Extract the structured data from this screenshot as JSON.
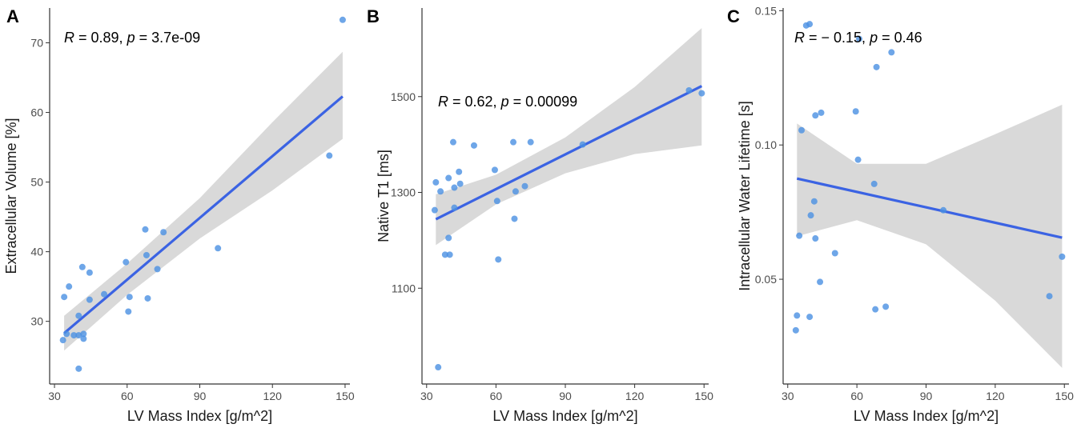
{
  "colors": {
    "point": "#4a90e2",
    "line": "#3b63e3",
    "band": "#d9d9d9",
    "axis": "#333333"
  },
  "chart_data": [
    {
      "type": "scatter",
      "panel_label": "A",
      "annotation": {
        "r_text": "R",
        "r_value": " = 0.89, ",
        "p_text": "p",
        "p_value": " = 3.7e-09"
      },
      "xlabel": "LV Mass Index [g/m^2]",
      "ylabel": "Extracellular Volume [%]",
      "xlim": [
        28,
        152
      ],
      "ylim": [
        21,
        75
      ],
      "xticks": [
        30,
        60,
        90,
        120,
        150
      ],
      "yticks": [
        30,
        40,
        50,
        60,
        70
      ],
      "points": [
        [
          33.5,
          27.3
        ],
        [
          34,
          33.5
        ],
        [
          35,
          28.2
        ],
        [
          36,
          35
        ],
        [
          38,
          28
        ],
        [
          40,
          28
        ],
        [
          40,
          30.8
        ],
        [
          40,
          23.2
        ],
        [
          41.5,
          37.8
        ],
        [
          42,
          28.2
        ],
        [
          42,
          27.5
        ],
        [
          44.5,
          37
        ],
        [
          44.5,
          33.1
        ],
        [
          50.5,
          33.9
        ],
        [
          59.5,
          38.5
        ],
        [
          60.5,
          31.4
        ],
        [
          61,
          33.5
        ],
        [
          67.5,
          43.2
        ],
        [
          68,
          39.5
        ],
        [
          68.5,
          33.3
        ],
        [
          72.5,
          37.5
        ],
        [
          75,
          42.8
        ],
        [
          97.5,
          40.5
        ],
        [
          143.5,
          53.8
        ],
        [
          149,
          73.3
        ]
      ],
      "fit": {
        "x": [
          34,
          149
        ],
        "y": [
          28.3,
          62.3
        ]
      },
      "band": {
        "x": [
          34,
          60,
          90,
          120,
          149
        ],
        "lower": [
          25.8,
          33.8,
          41.9,
          48.8,
          56.2
        ],
        "upper": [
          30.8,
          38.3,
          47.7,
          58.6,
          68.7
        ]
      }
    },
    {
      "type": "scatter",
      "panel_label": "B",
      "annotation": {
        "r_text": "R",
        "r_value": " = 0.62, ",
        "p_text": "p",
        "p_value": " = 0.00099"
      },
      "xlabel": "LV Mass Index [g/m^2]",
      "ylabel": "Native T1 [ms]",
      "xlim": [
        28,
        152
      ],
      "ylim": [
        900,
        1685
      ],
      "xticks": [
        30,
        60,
        90,
        120,
        150
      ],
      "yticks": [
        1100,
        1300,
        1500
      ],
      "points": [
        [
          33.5,
          1263
        ],
        [
          34,
          1321
        ],
        [
          35,
          935
        ],
        [
          36,
          1302
        ],
        [
          38,
          1170
        ],
        [
          39.5,
          1330
        ],
        [
          39.5,
          1205
        ],
        [
          40,
          1170
        ],
        [
          41.5,
          1405
        ],
        [
          42,
          1268
        ],
        [
          42,
          1310
        ],
        [
          44,
          1343
        ],
        [
          44.5,
          1318
        ],
        [
          50.5,
          1398
        ],
        [
          59.5,
          1347
        ],
        [
          60.5,
          1282
        ],
        [
          61,
          1160
        ],
        [
          67.5,
          1405
        ],
        [
          68,
          1245
        ],
        [
          68.5,
          1302
        ],
        [
          72.5,
          1313
        ],
        [
          75,
          1405
        ],
        [
          97.5,
          1400
        ],
        [
          143.5,
          1513
        ],
        [
          149,
          1507
        ]
      ],
      "fit": {
        "x": [
          34,
          149
        ],
        "y": [
          1244,
          1522
        ]
      },
      "band": {
        "x": [
          34,
          60,
          90,
          120,
          149
        ],
        "lower": [
          1190,
          1275,
          1340,
          1380,
          1398
        ],
        "upper": [
          1296,
          1337,
          1415,
          1520,
          1643
        ]
      }
    },
    {
      "type": "scatter",
      "panel_label": "C",
      "annotation": {
        "r_text": "R",
        "r_value": " = − 0.15, ",
        "p_text": "p",
        "p_value": " = 0.46"
      },
      "xlabel": "LV Mass Index [g/m^2]",
      "ylabel": "Intracellular Water Lifetime [s]",
      "xlim": [
        28,
        152
      ],
      "ylim": [
        0.011,
        0.151
      ],
      "xticks": [
        30,
        60,
        90,
        120,
        150
      ],
      "yticks": [
        0.05,
        0.1,
        0.15
      ],
      "ytick_labels": [
        "0.05",
        "0.10",
        "0.15"
      ],
      "points": [
        [
          33.5,
          0.031
        ],
        [
          34,
          0.0365
        ],
        [
          35,
          0.0662
        ],
        [
          36,
          0.1055
        ],
        [
          38,
          0.1445
        ],
        [
          39.5,
          0.145
        ],
        [
          39.5,
          0.036
        ],
        [
          40,
          0.0738
        ],
        [
          41.5,
          0.079
        ],
        [
          42,
          0.0652
        ],
        [
          42,
          0.111
        ],
        [
          44,
          0.049
        ],
        [
          44.5,
          0.112
        ],
        [
          50.5,
          0.0597
        ],
        [
          59.5,
          0.1125
        ],
        [
          60.5,
          0.0945
        ],
        [
          61,
          0.1395
        ],
        [
          67.5,
          0.0855
        ],
        [
          68,
          0.0388
        ],
        [
          68.5,
          0.129
        ],
        [
          72.5,
          0.0398
        ],
        [
          75,
          0.1345
        ],
        [
          97.5,
          0.0757
        ],
        [
          143.5,
          0.0437
        ],
        [
          149,
          0.0584
        ]
      ],
      "fit": {
        "x": [
          34,
          149
        ],
        "y": [
          0.0875,
          0.0655
        ]
      },
      "band": {
        "x": [
          34,
          60,
          90,
          120,
          149
        ],
        "lower": [
          0.066,
          0.072,
          0.063,
          0.042,
          0.017
        ],
        "upper": [
          0.108,
          0.093,
          0.093,
          0.104,
          0.115
        ]
      }
    }
  ]
}
